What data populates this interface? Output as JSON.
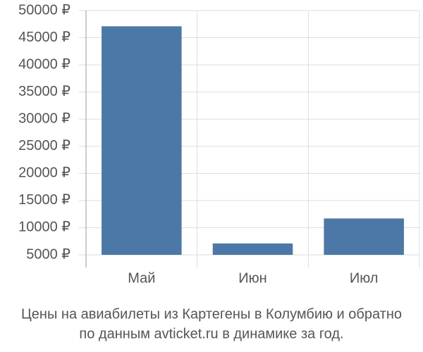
{
  "chart_data": {
    "type": "bar",
    "title": [
      "Цены на авиабилеты из Картегены в Колумбию и обратно",
      "по данным avticket.ru в динамике за год."
    ],
    "categories": [
      "Май",
      "Июн",
      "Июл"
    ],
    "values": [
      47100,
      7100,
      11700
    ],
    "color": "#4c78a8",
    "ylim": [
      5000,
      50000
    ],
    "yticks": [
      {
        "value": 5000,
        "label": "5000 ₽"
      },
      {
        "value": 10000,
        "label": "10000 ₽"
      },
      {
        "value": 15000,
        "label": "15000 ₽"
      },
      {
        "value": 20000,
        "label": "20000 ₽"
      },
      {
        "value": 25000,
        "label": "25000 ₽"
      },
      {
        "value": 30000,
        "label": "30000 ₽"
      },
      {
        "value": 35000,
        "label": "35000 ₽"
      },
      {
        "value": 40000,
        "label": "40000 ₽"
      },
      {
        "value": 45000,
        "label": "45000 ₽"
      },
      {
        "value": 50000,
        "label": "50000 ₽"
      }
    ],
    "grid": true
  }
}
